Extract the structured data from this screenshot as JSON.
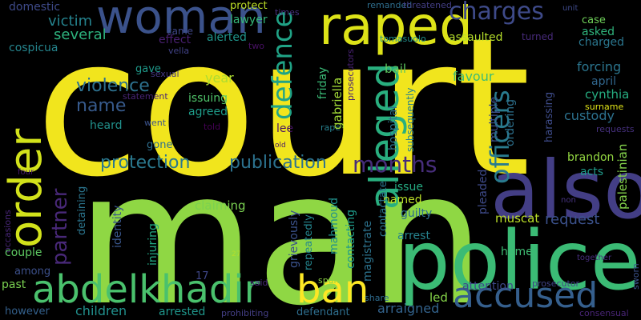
{
  "words": [
    {
      "text": "court",
      "color": "#f1e51d"
    },
    {
      "text": "man",
      "color": "#8fd744"
    },
    {
      "text": "police",
      "color": "#3bbb75"
    },
    {
      "text": "also",
      "color": "#433e85"
    },
    {
      "text": "woman",
      "color": "#3b528b"
    },
    {
      "text": "raped",
      "color": "#dde318"
    },
    {
      "text": "order",
      "color": "#d2e21b"
    },
    {
      "text": "alleged",
      "color": "#29af7f"
    },
    {
      "text": "abdelkhadir",
      "color": "#4ac16d"
    },
    {
      "text": "ban",
      "color": "#fde725"
    },
    {
      "text": "accused",
      "color": "#355f8d"
    },
    {
      "text": "charges",
      "color": "#3e4a89"
    },
    {
      "text": "months",
      "color": "#472d7b"
    },
    {
      "text": "officers",
      "color": "#297b8e"
    },
    {
      "text": "defence",
      "color": "#20a386"
    },
    {
      "text": "protection",
      "color": "#2a788e"
    },
    {
      "text": "publication",
      "color": "#2c728e"
    },
    {
      "text": "partner",
      "color": "#482878"
    },
    {
      "text": "name",
      "color": "#375a8c"
    },
    {
      "text": "violence",
      "color": "#2d718e"
    },
    {
      "text": "victim",
      "color": "#25838e"
    },
    {
      "text": "several",
      "color": "#2db27d"
    },
    {
      "text": "domestic",
      "color": "#3e4a89"
    },
    {
      "text": "cospicua",
      "color": "#25858e"
    },
    {
      "text": "effect",
      "color": "#481f70"
    },
    {
      "text": "alerted",
      "color": "#1f958b"
    },
    {
      "text": "lawyer",
      "color": "#35b779"
    },
    {
      "text": "protect",
      "color": "#bddf26"
    },
    {
      "text": "times",
      "color": "#46327e"
    },
    {
      "text": "remanded",
      "color": "#2e6e8e"
    },
    {
      "text": "threatened",
      "color": "#433e85"
    },
    {
      "text": "unit",
      "color": "#3e4989"
    },
    {
      "text": "case",
      "color": "#6ece58"
    },
    {
      "text": "asked",
      "color": "#2fb47c"
    },
    {
      "text": "charged",
      "color": "#2a768e"
    },
    {
      "text": "assaulted",
      "color": "#b5de2b"
    },
    {
      "text": "turned",
      "color": "#472a7a"
    },
    {
      "text": "tomasuolo",
      "color": "#21908d"
    },
    {
      "text": "came",
      "color": "#3f4788"
    },
    {
      "text": "vella",
      "color": "#414287"
    },
    {
      "text": "two",
      "color": "#471063"
    },
    {
      "text": "gave",
      "color": "#1f998a"
    },
    {
      "text": "sexual",
      "color": "#453882"
    },
    {
      "text": "statement",
      "color": "#482475"
    },
    {
      "text": "year",
      "color": "#addc30"
    },
    {
      "text": "issuing",
      "color": "#4fc46a"
    },
    {
      "text": "agreed",
      "color": "#1e9c89"
    },
    {
      "text": "told",
      "color": "#440154"
    },
    {
      "text": "went",
      "color": "#3b528b"
    },
    {
      "text": "heard",
      "color": "#21918c"
    },
    {
      "text": "gone",
      "color": "#2e6f8e"
    },
    {
      "text": "lee",
      "color": "#471365"
    },
    {
      "text": "rape",
      "color": "#27808e"
    },
    {
      "text": "old",
      "color": "#481769"
    },
    {
      "text": "friday",
      "color": "#3aba76"
    },
    {
      "text": "gabriella",
      "color": "#a2da37"
    },
    {
      "text": "prosecutors",
      "color": "#482173"
    },
    {
      "text": "bail",
      "color": "#5ec962"
    },
    {
      "text": "hospital",
      "color": "#2c728e"
    },
    {
      "text": "subsequently",
      "color": "#26828e"
    },
    {
      "text": "multiple",
      "color": "#3c4f8a"
    },
    {
      "text": "ordering",
      "color": "#2d718e"
    },
    {
      "text": "favour",
      "color": "#3dbc74"
    },
    {
      "text": "forcing",
      "color": "#2b758e"
    },
    {
      "text": "april",
      "color": "#31678e"
    },
    {
      "text": "cynthia",
      "color": "#26ad81"
    },
    {
      "text": "surname",
      "color": "#dfe318"
    },
    {
      "text": "custody",
      "color": "#2c718e"
    },
    {
      "text": "harassing",
      "color": "#3e4c8a"
    },
    {
      "text": "palestinian",
      "color": "#84d44b"
    },
    {
      "text": "requests",
      "color": "#46307e"
    },
    {
      "text": "brandon",
      "color": "#93d741"
    },
    {
      "text": "acts",
      "color": "#1f9a8a"
    },
    {
      "text": "request",
      "color": "#3b518b"
    },
    {
      "text": "issue",
      "color": "#25ab82"
    },
    {
      "text": "named",
      "color": "#bade28"
    },
    {
      "text": "guilty",
      "color": "#2e6d8e"
    },
    {
      "text": "muscat",
      "color": "#bade28"
    },
    {
      "text": "non",
      "color": "#46337f"
    },
    {
      "text": "claiming",
      "color": "#7ad151"
    },
    {
      "text": "identity",
      "color": "#39568c"
    },
    {
      "text": "injuring",
      "color": "#22a884"
    },
    {
      "text": "detaining",
      "color": "#2b758e"
    },
    {
      "text": "occasions",
      "color": "#482677"
    },
    {
      "text": "four",
      "color": "#481b6d"
    },
    {
      "text": "couple",
      "color": "#5ec962"
    },
    {
      "text": "among",
      "color": "#3c508b"
    },
    {
      "text": "past",
      "color": "#7ad151"
    },
    {
      "text": "however",
      "color": "#34618d"
    },
    {
      "text": "children",
      "color": "#21908d"
    },
    {
      "text": "arrested",
      "color": "#1f968b"
    },
    {
      "text": "prohibiting",
      "color": "#433e85"
    },
    {
      "text": "said",
      "color": "#482878"
    },
    {
      "text": "17",
      "color": "#3f4788"
    },
    {
      "text": "27",
      "color": "#b5de2b"
    },
    {
      "text": "grievously",
      "color": "#3b528b"
    },
    {
      "text": "repeatedly",
      "color": "#24868e"
    },
    {
      "text": "mahmoud",
      "color": "#21918c"
    },
    {
      "text": "magistrate",
      "color": "#2c738e"
    },
    {
      "text": "contacting",
      "color": "#1e9b8a"
    },
    {
      "text": "contactate",
      "color": "#2b748e"
    },
    {
      "text": "arrest",
      "color": "#26828e"
    },
    {
      "text": "pleaded",
      "color": "#3e4a89"
    },
    {
      "text": "home",
      "color": "#3fbc73"
    },
    {
      "text": "span",
      "color": "#8fd744"
    },
    {
      "text": "defendant",
      "color": "#2e6e8e"
    },
    {
      "text": "arraigned",
      "color": "#33638d"
    },
    {
      "text": "led",
      "color": "#86d549"
    },
    {
      "text": "share",
      "color": "#2f6c8e"
    },
    {
      "text": "attention",
      "color": "#3e4989"
    },
    {
      "text": "prosecutor",
      "color": "#414487"
    },
    {
      "text": "together",
      "color": "#472f7d"
    },
    {
      "text": "sworn",
      "color": "#3b528b"
    },
    {
      "text": "consensual",
      "color": "#482475"
    }
  ]
}
